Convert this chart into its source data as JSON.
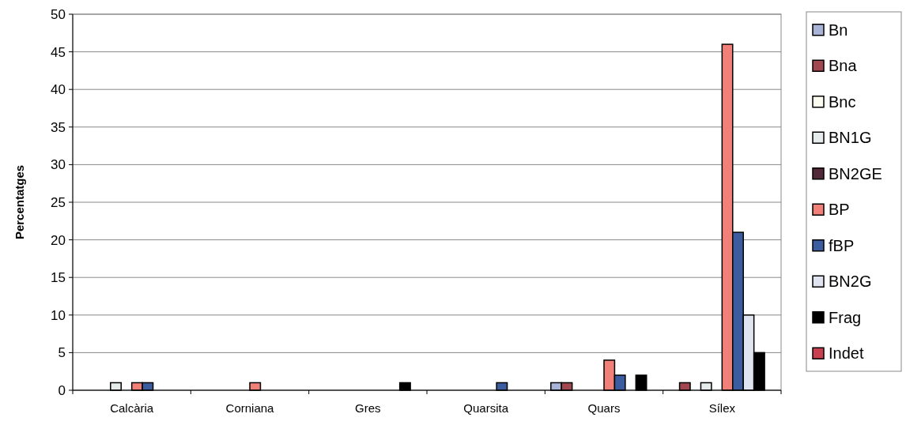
{
  "chart_data": {
    "type": "bar",
    "ylabel": "Percentatges",
    "categories": [
      "Calcària",
      "Corniana",
      "Gres",
      "Quarsita",
      "Quars",
      "Sílex"
    ],
    "series": [
      {
        "name": "Bn",
        "color": "#a9b3d6",
        "values": [
          0,
          0,
          0,
          0,
          1,
          0
        ]
      },
      {
        "name": "Bna",
        "color": "#a0474f",
        "values": [
          0,
          0,
          0,
          0,
          1,
          1
        ]
      },
      {
        "name": "Bnc",
        "color": "#fcfcf0",
        "values": [
          0,
          0,
          0,
          0,
          0,
          0
        ]
      },
      {
        "name": "BN1G",
        "color": "#e6ecec",
        "values": [
          1,
          0,
          0,
          0,
          0,
          1
        ]
      },
      {
        "name": "BN2GE",
        "color": "#502838",
        "values": [
          0,
          0,
          0,
          0,
          0,
          0
        ]
      },
      {
        "name": "BP",
        "color": "#f08078",
        "values": [
          1,
          1,
          0,
          0,
          4,
          46
        ]
      },
      {
        "name": "fBP",
        "color": "#3c5ca0",
        "values": [
          1,
          0,
          0,
          1,
          2,
          21
        ]
      },
      {
        "name": "BN2G",
        "color": "#e0e4f0",
        "values": [
          0,
          0,
          0,
          0,
          0,
          10
        ]
      },
      {
        "name": "Frag",
        "color": "#000000",
        "values": [
          0,
          0,
          1,
          0,
          2,
          5
        ]
      },
      {
        "name": "Indet",
        "color": "#c84050",
        "values": [
          0,
          0,
          0,
          0,
          0,
          0
        ]
      }
    ],
    "ylim": [
      0,
      50
    ],
    "yticks": [
      0,
      5,
      10,
      15,
      20,
      25,
      30,
      35,
      40,
      45,
      50
    ],
    "grid": "y",
    "legend": "right"
  }
}
